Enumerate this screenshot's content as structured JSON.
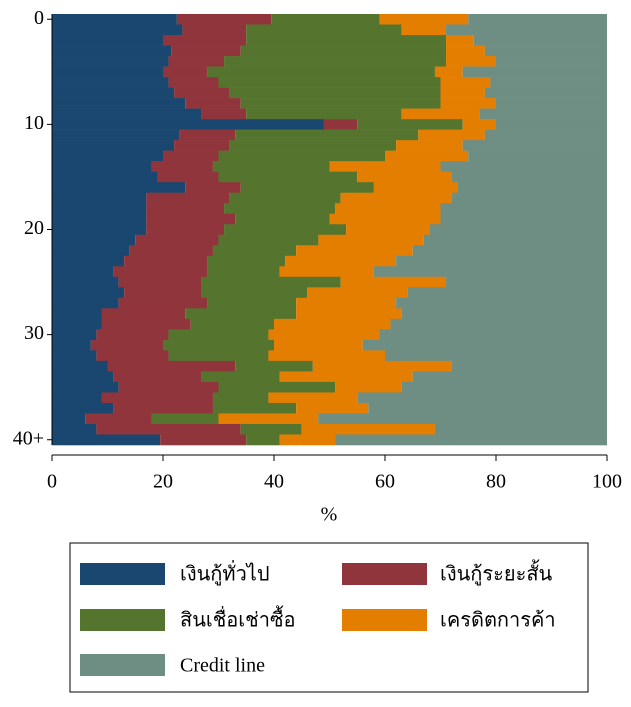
{
  "chart_data": {
    "type": "bar",
    "orientation": "horizontal",
    "stacked": true,
    "categories": [
      "0",
      null,
      null,
      null,
      null,
      null,
      null,
      null,
      null,
      null,
      "10",
      null,
      null,
      null,
      null,
      null,
      null,
      null,
      null,
      null,
      "20",
      null,
      null,
      null,
      null,
      null,
      null,
      null,
      null,
      null,
      "30",
      null,
      null,
      null,
      null,
      null,
      null,
      null,
      null,
      null,
      "40+"
    ],
    "x_label": "%",
    "xlim": [
      0,
      100
    ],
    "xticks": [
      0,
      20,
      40,
      60,
      80,
      100
    ],
    "legend": "bottom",
    "series": [
      {
        "name": "เงินกู้ทั่วไป",
        "color": "#1a476f",
        "values": [
          22.5,
          23.5,
          20,
          21.5,
          21,
          20,
          21,
          22,
          24,
          27,
          49,
          23,
          22,
          20,
          18,
          19,
          24,
          17,
          17,
          17,
          17,
          15,
          14,
          13,
          11,
          12,
          13,
          12,
          9,
          9,
          8,
          7,
          8,
          10,
          11,
          12,
          9,
          11,
          6,
          8,
          19.5
        ]
      },
      {
        "name": "เงินกู้ระยะสั้น",
        "color": "#90353b",
        "values": [
          17,
          11.5,
          15,
          12.5,
          10,
          8,
          9,
          10,
          10,
          8,
          6,
          10,
          10,
          10,
          11,
          11,
          10,
          15,
          14,
          16,
          14,
          15,
          15,
          15,
          17,
          15,
          14,
          16,
          15,
          16,
          13,
          13,
          13,
          23,
          16,
          18,
          20,
          18,
          12,
          26,
          15.5
        ]
      },
      {
        "name": "สินเชื่อเช่าซื้อ",
        "color": "#55752f",
        "values": [
          19.5,
          28,
          36,
          37,
          40,
          41,
          40,
          38,
          36,
          28,
          19,
          33,
          30,
          30,
          21,
          25,
          24,
          20,
          20,
          17,
          22,
          18,
          15,
          14,
          13,
          25,
          19,
          16,
          20,
          15,
          18,
          20,
          18,
          14,
          14,
          21,
          10,
          15,
          12,
          11,
          6
        ]
      },
      {
        "name": "เครดิตการค้า",
        "color": "#e37e00",
        "values": [
          16,
          8,
          5,
          7,
          9,
          5,
          9,
          8,
          10,
          14,
          6,
          12,
          12,
          15,
          20,
          17,
          15,
          20,
          19,
          20,
          15,
          19,
          21,
          20,
          17,
          19,
          18,
          18,
          19,
          21,
          20,
          16,
          21,
          25,
          24,
          12,
          16,
          13,
          18,
          24,
          10
        ]
      },
      {
        "name": "Credit line",
        "color": "#6e8e84",
        "values": [
          25,
          29,
          24,
          22,
          20,
          26,
          21,
          22,
          20,
          23,
          20,
          22,
          26,
          25,
          30,
          28,
          27,
          28,
          30,
          30,
          32,
          33,
          35,
          38,
          42,
          29,
          36,
          38,
          37,
          39,
          41,
          44,
          40,
          28,
          35,
          37,
          45,
          43,
          52,
          31,
          49
        ]
      }
    ]
  }
}
